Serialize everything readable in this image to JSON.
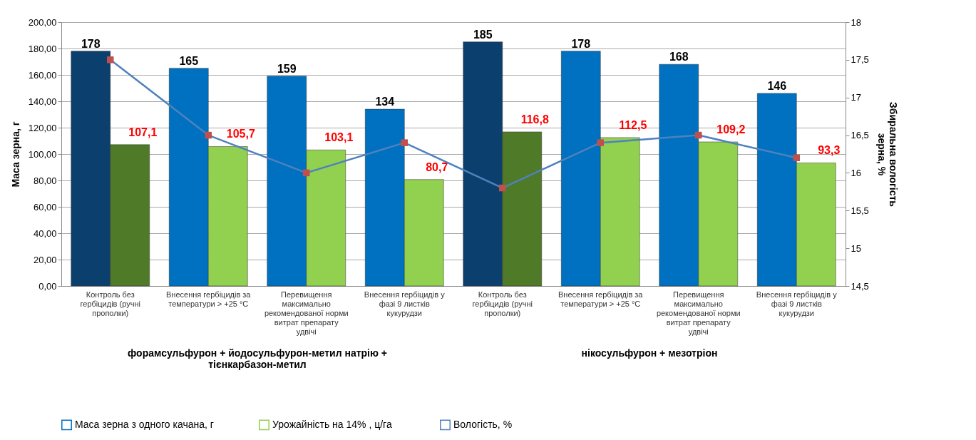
{
  "chart_data": {
    "type": "bar",
    "ylabel": "Маса зерна, г",
    "y2label": "Збиральна вологість зерна, %",
    "categories": [
      "Контроль без гербіцидів (ручні прополки)",
      "Внесення гербіцидів за температури > +25 °C",
      "Перевищення максимально рекомендованої норми витрат препарату удвічі",
      "Внесення гербіцидів у фазі 9 листків кукурудзи",
      "Контроль без гербіцидів (ручні прополки)",
      "Внесення гербіцидів за температури > +25 °C",
      "Перевищення максимально рекомендованої норми витрат препарату удвічі",
      "Внесення гербіцидів у фазі 9 листків кукурудзи"
    ],
    "annotations": [
      "форамсульфурон + йодосульфурон-метил натрію + тієнкарбазон-метил",
      "нікосульфурон + мезотріон"
    ],
    "series": [
      {
        "name": "Маса зерна з одного качана, г",
        "color": "#0070c0",
        "colors": [
          "#0b3f6e",
          "#0070c0",
          "#0070c0",
          "#0070c0",
          "#0b3f6e",
          "#0070c0",
          "#0070c0",
          "#0070c0"
        ],
        "values": [
          178,
          165,
          159,
          134,
          185,
          178,
          168,
          146
        ],
        "value_labels": [
          "178",
          "165",
          "159",
          "134",
          "185",
          "178",
          "168",
          "146"
        ]
      },
      {
        "name": "Урожайність на  14% , ц/га",
        "color": "#92d050",
        "colors": [
          "#4f7a28",
          "#92d050",
          "#92d050",
          "#92d050",
          "#4f7a28",
          "#92d050",
          "#92d050",
          "#92d050"
        ],
        "values": [
          107.1,
          105.7,
          103.1,
          80.7,
          116.8,
          112.5,
          109.2,
          93.3
        ],
        "value_labels": [
          "107,1",
          "105,7",
          "103,1",
          "80,7",
          "116,8",
          "112,5",
          "109,2",
          "93,3"
        ]
      },
      {
        "name": "Вологість, %",
        "type": "line",
        "axis": "y2",
        "color": "#4f81bd",
        "colors": [
          "#c0504d",
          "#c0504d",
          "#c0504d",
          "#c0504d",
          "#c0504d",
          "#c0504d",
          "#c0504d",
          "#c0504d"
        ],
        "marker": "square",
        "values": [
          17.5,
          16.5,
          16.0,
          16.4,
          15.8,
          16.4,
          16.5,
          16.2
        ]
      }
    ],
    "ylim": [
      0,
      200
    ],
    "yticks": [
      {
        "value": 0,
        "label": "0,00"
      },
      {
        "value": 20,
        "label": "20,00"
      },
      {
        "value": 40,
        "label": "40,00"
      },
      {
        "value": 60,
        "label": "60,00"
      },
      {
        "value": 80,
        "label": "80,00"
      },
      {
        "value": 100,
        "label": "100,00"
      },
      {
        "value": 120,
        "label": "120,00"
      },
      {
        "value": 140,
        "label": "140,00"
      },
      {
        "value": 160,
        "label": "160,00"
      },
      {
        "value": 180,
        "label": "180,00"
      },
      {
        "value": 200,
        "label": "200,00"
      }
    ],
    "y2lim": [
      14.5,
      18
    ],
    "y2ticks": [
      {
        "value": 14.5,
        "label": "14,5"
      },
      15,
      {
        "value": 15.5,
        "label": "15,5"
      },
      16,
      {
        "value": 16.5,
        "label": "16,5"
      },
      17,
      {
        "value": 17.5,
        "label": "17,5"
      },
      18
    ],
    "grid": "y",
    "legend": "bottom"
  }
}
